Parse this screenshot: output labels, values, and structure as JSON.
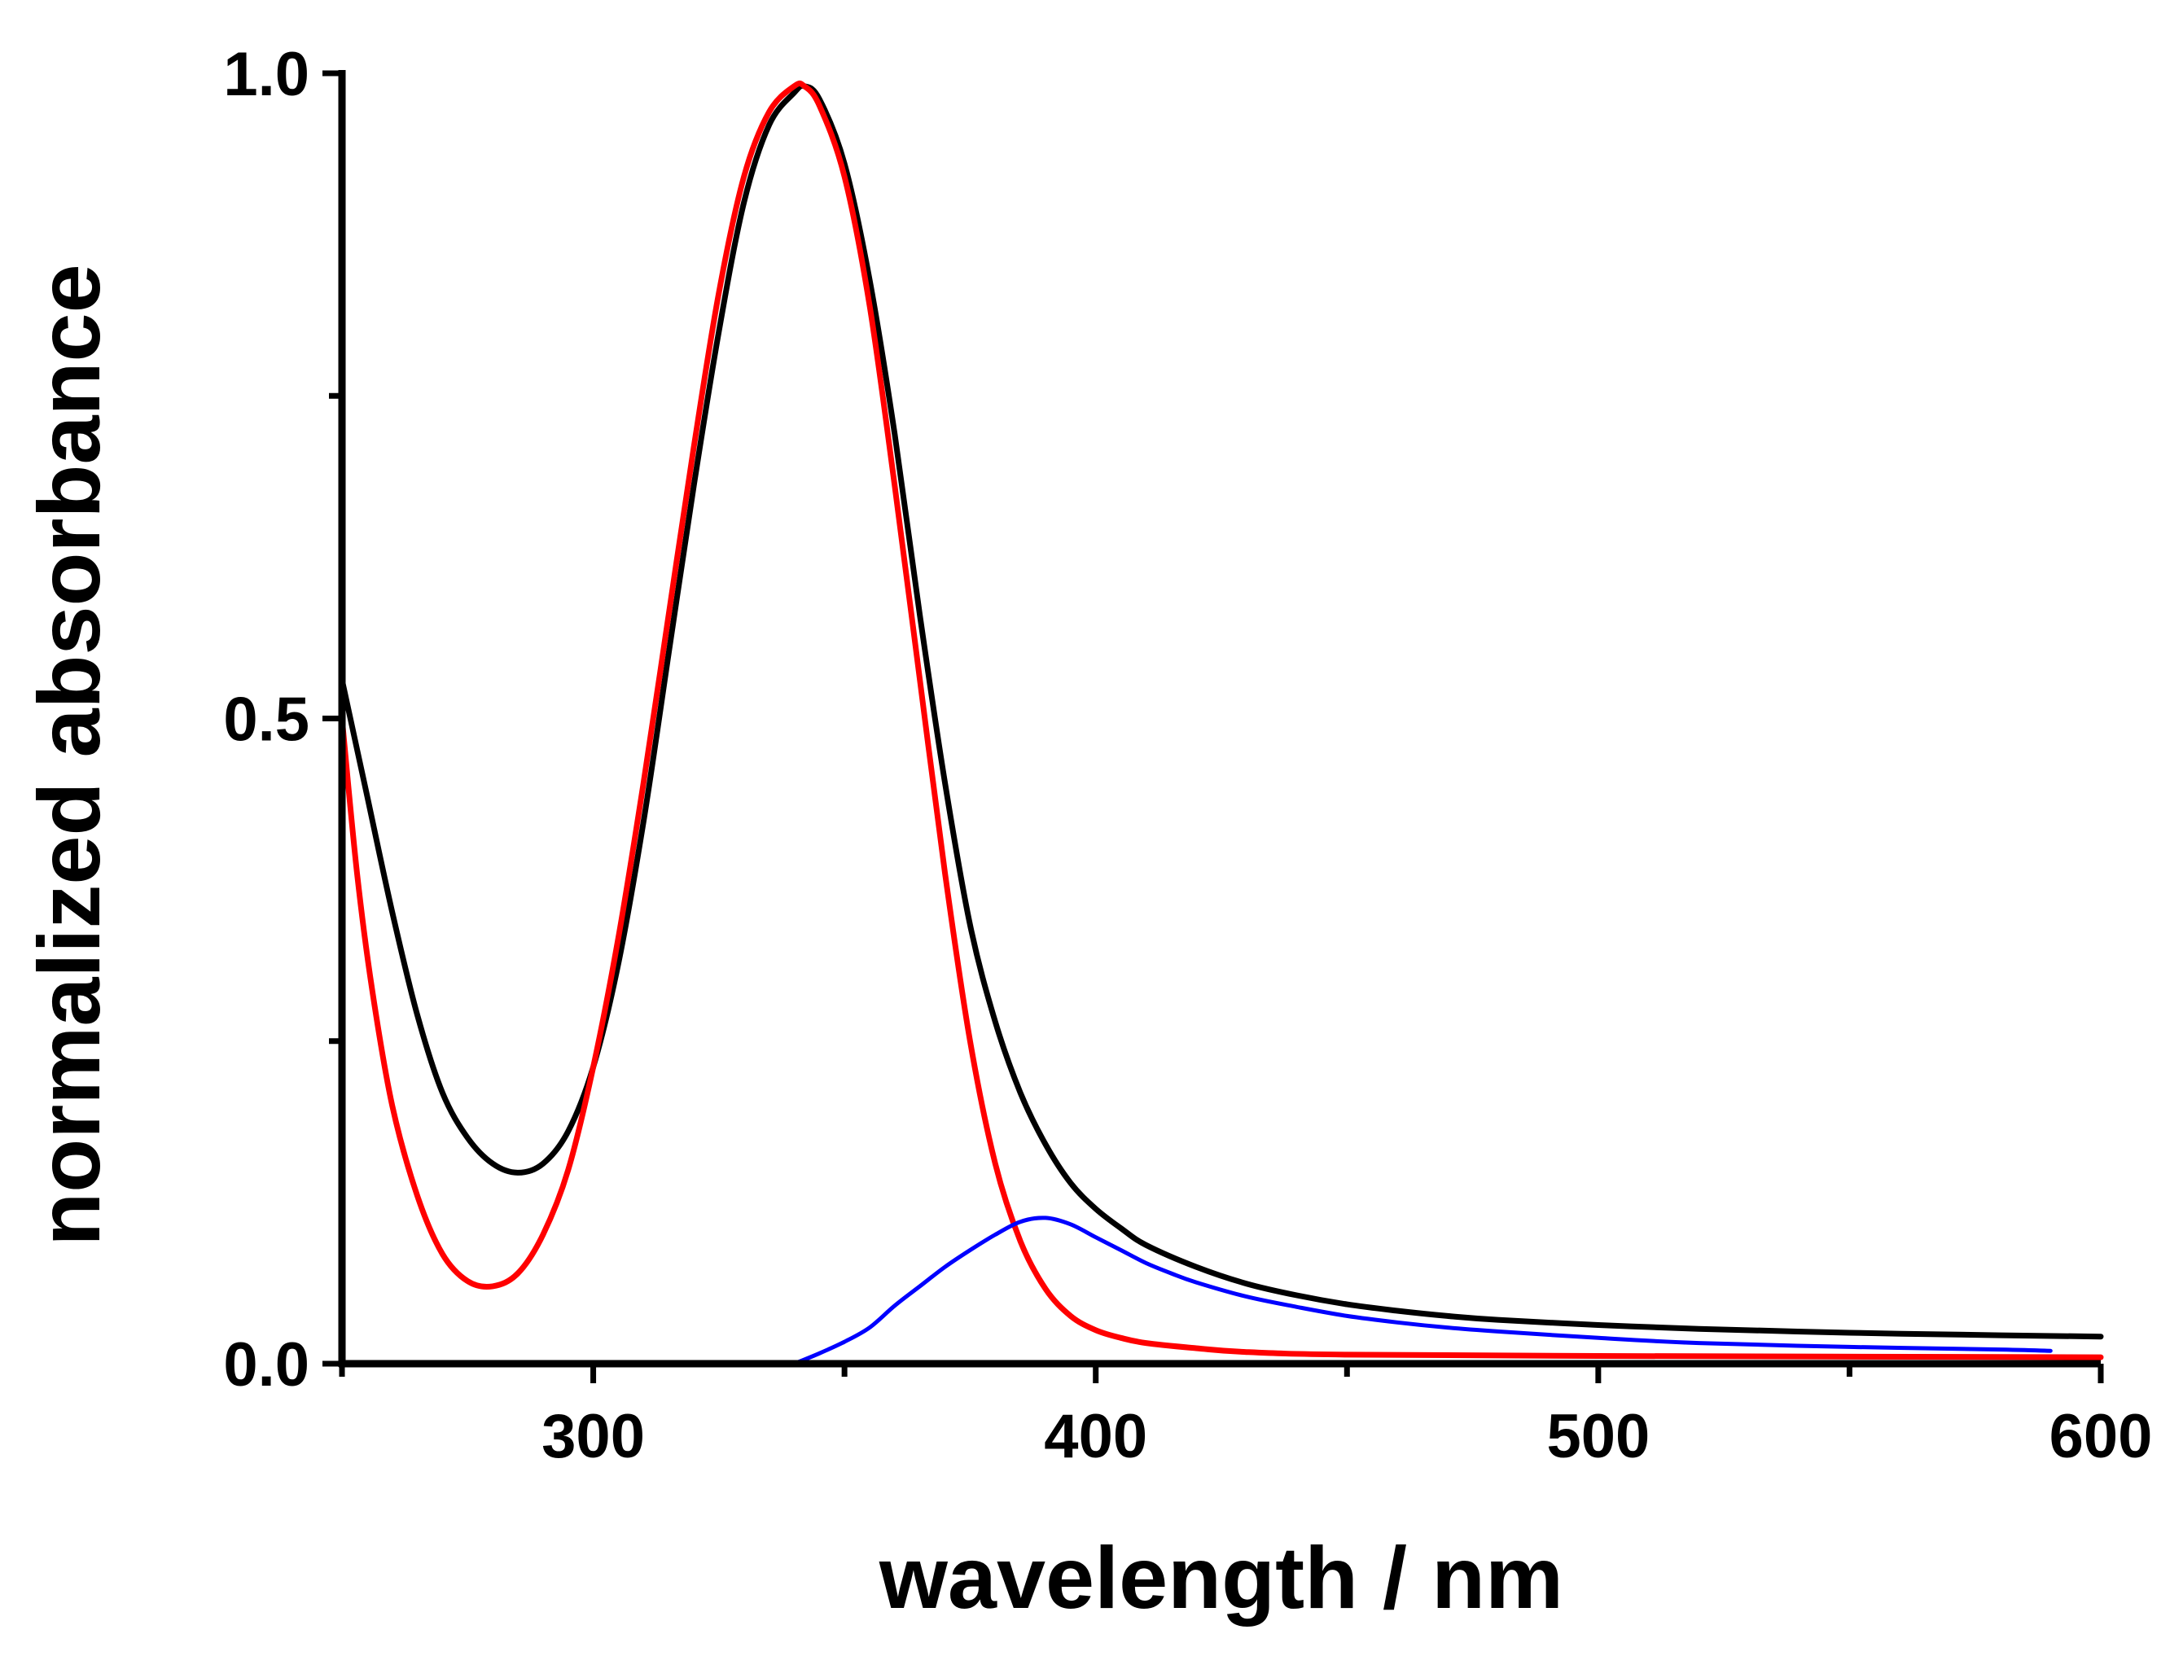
{
  "chart_data": {
    "type": "line",
    "title": "",
    "xlabel": "wavelength / nm",
    "ylabel": "normalized absorbance",
    "xlim": [
      250,
      600
    ],
    "ylim": [
      0,
      1
    ],
    "x_major_ticks": [
      300,
      400,
      500,
      600
    ],
    "x_major_tick_labels": [
      "300",
      "400",
      "500",
      "600"
    ],
    "x_minor_ticks": [
      250,
      350,
      450,
      550
    ],
    "y_major_ticks": [
      0,
      0.5,
      1.0
    ],
    "y_major_tick_labels": [
      "0.0",
      "0.5",
      "1.0"
    ],
    "y_minor_ticks": [
      0.25,
      0.75
    ],
    "grid": false,
    "series": [
      {
        "name": "black",
        "color": "#000000",
        "x": [
          250,
          255,
          260,
          265,
          270,
          275,
          280,
          285,
          290,
          295,
          300,
          305,
          310,
          315,
          320,
          325,
          330,
          335,
          340,
          342,
          345,
          350,
          355,
          360,
          365,
          370,
          375,
          380,
          385,
          390,
          395,
          400,
          405,
          410,
          420,
          430,
          440,
          450,
          460,
          470,
          480,
          500,
          520,
          550,
          580,
          600
        ],
        "y": [
          0.53,
          0.44,
          0.35,
          0.27,
          0.21,
          0.175,
          0.155,
          0.148,
          0.155,
          0.18,
          0.23,
          0.31,
          0.42,
          0.55,
          0.68,
          0.8,
          0.9,
          0.96,
          0.985,
          0.99,
          0.98,
          0.93,
          0.84,
          0.72,
          0.58,
          0.45,
          0.34,
          0.265,
          0.21,
          0.17,
          0.14,
          0.12,
          0.105,
          0.092,
          0.075,
          0.062,
          0.053,
          0.046,
          0.041,
          0.037,
          0.034,
          0.03,
          0.027,
          0.024,
          0.022,
          0.021
        ]
      },
      {
        "name": "red",
        "color": "#ff0000",
        "x": [
          250,
          253,
          256,
          260,
          265,
          270,
          275,
          280,
          285,
          290,
          295,
          300,
          305,
          310,
          315,
          320,
          325,
          330,
          335,
          340,
          342,
          345,
          350,
          355,
          360,
          365,
          370,
          375,
          380,
          385,
          390,
          395,
          400,
          405,
          410,
          420,
          430,
          450,
          500,
          600
        ],
        "y": [
          0.5,
          0.38,
          0.29,
          0.2,
          0.13,
          0.085,
          0.064,
          0.06,
          0.07,
          0.1,
          0.15,
          0.23,
          0.33,
          0.45,
          0.58,
          0.71,
          0.83,
          0.92,
          0.97,
          0.99,
          0.99,
          0.975,
          0.92,
          0.82,
          0.68,
          0.53,
          0.38,
          0.25,
          0.155,
          0.095,
          0.058,
          0.037,
          0.026,
          0.02,
          0.016,
          0.012,
          0.009,
          0.007,
          0.006,
          0.005
        ]
      },
      {
        "name": "blue",
        "color": "#0000ff",
        "x": [
          340,
          345,
          350,
          355,
          360,
          365,
          370,
          375,
          380,
          385,
          390,
          395,
          400,
          405,
          410,
          415,
          420,
          430,
          440,
          450,
          460,
          470,
          480,
          500,
          520,
          550,
          580,
          590
        ],
        "y": [
          0.0,
          0.008,
          0.017,
          0.028,
          0.045,
          0.06,
          0.075,
          0.088,
          0.1,
          0.11,
          0.113,
          0.108,
          0.098,
          0.088,
          0.078,
          0.07,
          0.063,
          0.052,
          0.044,
          0.037,
          0.032,
          0.028,
          0.025,
          0.02,
          0.016,
          0.013,
          0.011,
          0.01
        ]
      }
    ]
  }
}
